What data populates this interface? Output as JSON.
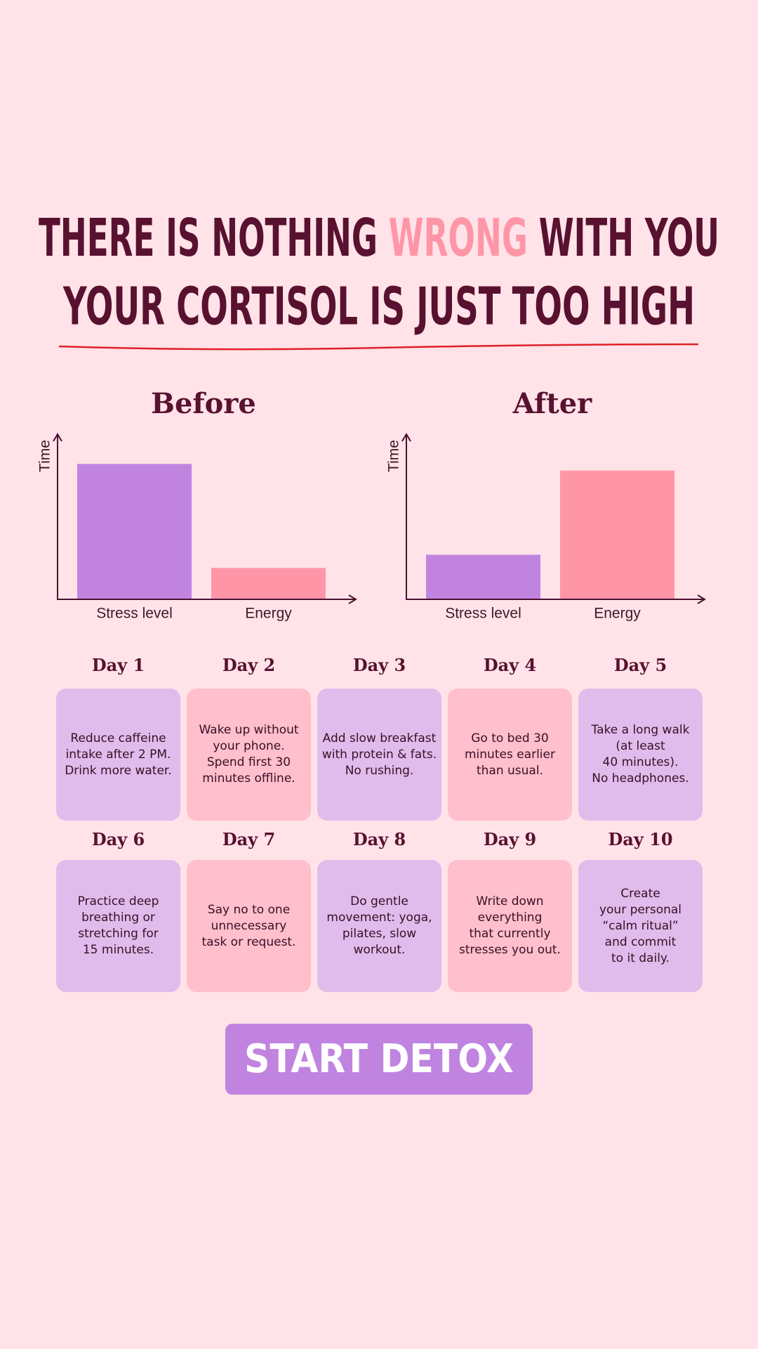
{
  "header": {
    "line1": [
      "THERE IS NOTHING",
      "WRONG",
      "WITH YOU"
    ],
    "line2": "YOUR CORTISOL IS JUST TOO HIGH"
  },
  "chart_data": [
    {
      "type": "bar",
      "title": "Before",
      "y_label": "Time",
      "categories": [
        "Stress level",
        "Energy"
      ],
      "values": [
        82,
        19
      ],
      "colors": [
        "#c084e0",
        "#ff96a8"
      ],
      "ylim": [
        0,
        100
      ]
    },
    {
      "type": "bar",
      "title": "After",
      "y_label": "Time",
      "categories": [
        "Stress level",
        "Energy"
      ],
      "values": [
        27,
        78
      ],
      "colors": [
        "#c084e0",
        "#ff96a8"
      ],
      "ylim": [
        0,
        100
      ]
    }
  ],
  "plan": {
    "days": [
      {
        "label": "Day 1",
        "text": "Reduce caffeine\nintake after 2 PM.\nDrink more water."
      },
      {
        "label": "Day 2",
        "text": "Wake up without\nyour phone.\nSpend first 30\nminutes offline."
      },
      {
        "label": "Day 3",
        "text": "Add slow breakfast\nwith protein & fats.\nNo rushing."
      },
      {
        "label": "Day 4",
        "text": "Go to bed 30\nminutes earlier\nthan usual."
      },
      {
        "label": "Day 5",
        "text": "Take a long walk\n(at least\n40 minutes).\nNo headphones."
      },
      {
        "label": "Day 6",
        "text": "Practice deep\nbreathing or\nstretching for\n15 minutes."
      },
      {
        "label": "Day 7",
        "text": "Say no to one\nunnecessary\ntask or request."
      },
      {
        "label": "Day 8",
        "text": "Do gentle\nmovement: yoga,\npilates, slow\nworkout."
      },
      {
        "label": "Day 9",
        "text": "Write down\neverything\nthat currently\nstresses you out."
      },
      {
        "label": "Day 10",
        "text": "Create\nyour personal\n“calm ritual”\nand commit\nto it daily."
      }
    ]
  },
  "button": {
    "label": "START DETOX"
  }
}
